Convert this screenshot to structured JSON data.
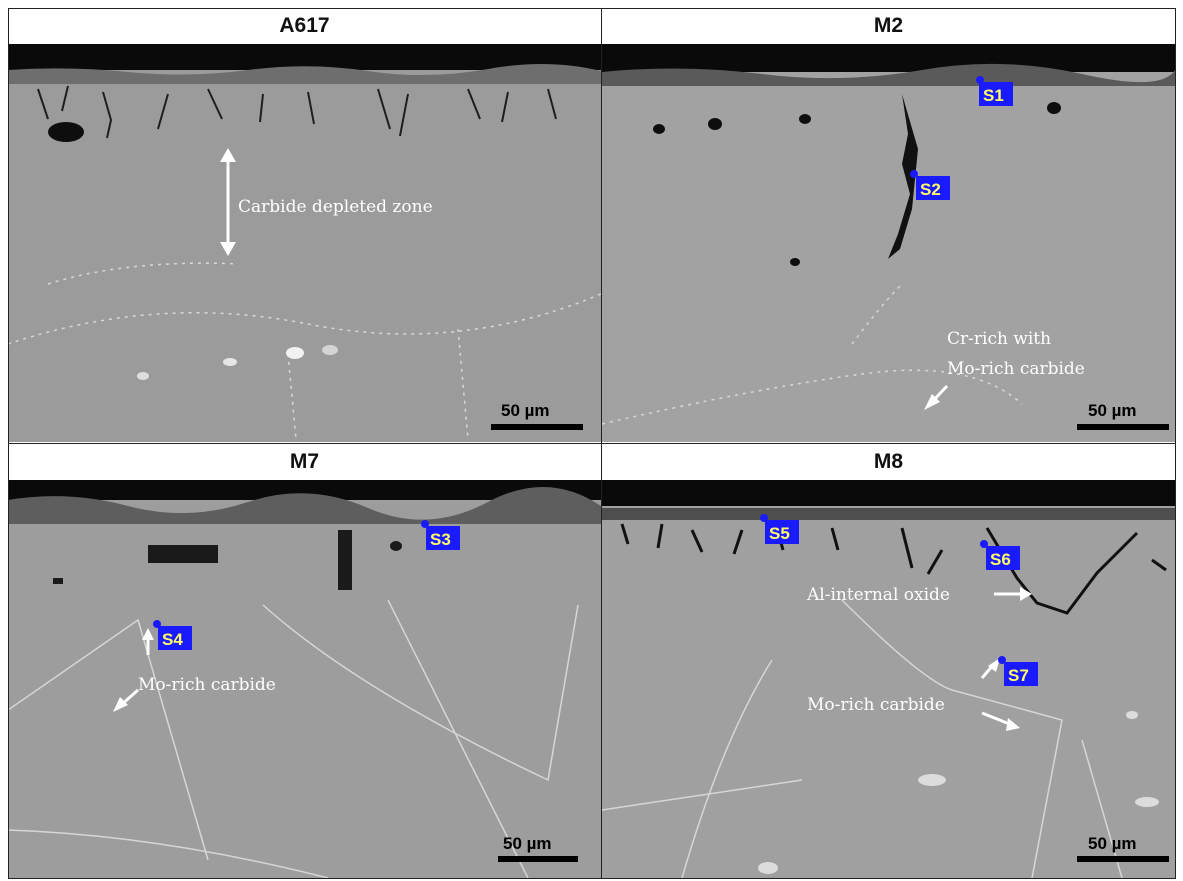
{
  "panels": [
    {
      "title": "A617",
      "scale_bar": "50 µm",
      "annotations": [
        "Carbide depleted zone"
      ],
      "tags": []
    },
    {
      "title": "M2",
      "scale_bar": "50 µm",
      "annotations": [
        "Cr-rich with",
        "Mo-rich carbide"
      ],
      "tags": [
        "S1",
        "S2"
      ]
    },
    {
      "title": "M7",
      "scale_bar": "50 µm",
      "annotations": [
        "Mo-rich carbide"
      ],
      "tags": [
        "S3",
        "S4"
      ]
    },
    {
      "title": "M8",
      "scale_bar": "50 µm",
      "annotations": [
        "Al-internal oxide",
        "Mo-rich carbide"
      ],
      "tags": [
        "S5",
        "S6",
        "S7"
      ]
    }
  ],
  "colors": {
    "tag_bg": "#1a1aff",
    "tag_text": "#ffff66",
    "matrix": "#9a9a9a",
    "oxide": "#0a0a0a"
  }
}
